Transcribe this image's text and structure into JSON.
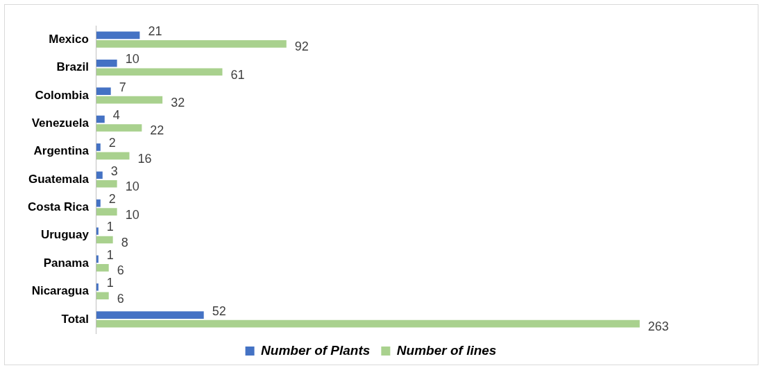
{
  "chart_data": {
    "type": "bar",
    "orientation": "horizontal",
    "categories": [
      "Mexico",
      "Brazil",
      "Colombia",
      "Venezuela",
      "Argentina",
      "Guatemala",
      "Costa Rica",
      "Uruguay",
      "Panama",
      "Nicaragua",
      "Total"
    ],
    "series": [
      {
        "name": "Number of Plants",
        "color": "#4472c4",
        "values": [
          21,
          10,
          7,
          4,
          2,
          3,
          2,
          1,
          1,
          1,
          52
        ]
      },
      {
        "name": "Number of lines",
        "color": "#a9d18e",
        "values": [
          92,
          61,
          32,
          22,
          16,
          10,
          10,
          8,
          6,
          6,
          263
        ]
      }
    ],
    "data_labels": true,
    "legend": "bottom"
  }
}
